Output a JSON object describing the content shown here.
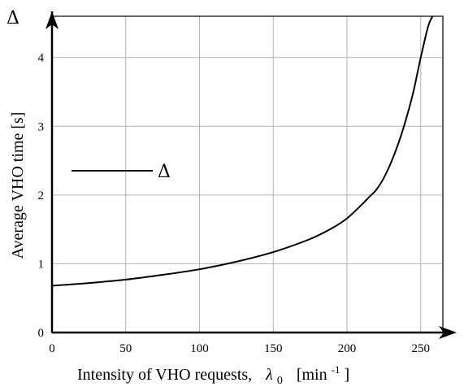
{
  "chart_data": {
    "type": "line",
    "xlabel_main": "Intensity of VHO requests,",
    "xlabel_symbol": "λ",
    "xlabel_subscript": "0",
    "xlabel_unit_open": "[min",
    "xlabel_unit_exp": "-1",
    "xlabel_unit_close": "]",
    "ylabel": "Average VHO time [s]",
    "y_axis_symbol": "Δ",
    "xlim": [
      0,
      265
    ],
    "ylim": [
      0,
      4.6
    ],
    "x_ticks": [
      0,
      50,
      100,
      150,
      200,
      250
    ],
    "y_ticks": [
      0,
      1,
      2,
      3,
      4
    ],
    "grid": true,
    "legend": {
      "position": "left-middle",
      "entries": [
        "Δ"
      ]
    },
    "series": [
      {
        "x": [
          0,
          25,
          50,
          75,
          100,
          125,
          150,
          175,
          190,
          200,
          210,
          215,
          220,
          225,
          230,
          235,
          240,
          245,
          250,
          255,
          258
        ],
        "y": [
          0.68,
          0.72,
          0.77,
          0.84,
          0.92,
          1.03,
          1.17,
          1.36,
          1.52,
          1.66,
          1.86,
          1.97,
          2.08,
          2.25,
          2.48,
          2.76,
          3.1,
          3.5,
          4.0,
          4.45,
          4.6
        ]
      }
    ]
  }
}
